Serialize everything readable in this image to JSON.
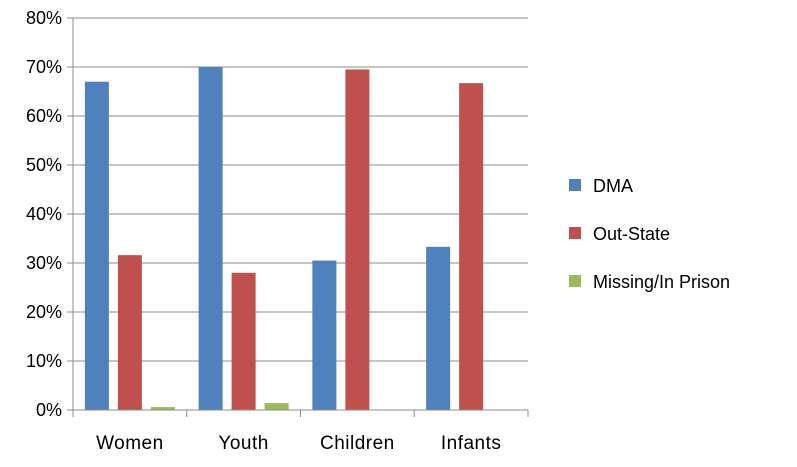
{
  "chart_data": {
    "type": "bar",
    "title": "",
    "xlabel": "",
    "ylabel": "",
    "categories": [
      "Women",
      "Youth",
      "Children",
      "Infants"
    ],
    "ylim": [
      0,
      80
    ],
    "yticks": [
      0,
      10,
      20,
      30,
      40,
      50,
      60,
      70,
      80
    ],
    "ytick_labels": [
      "0%",
      "10%",
      "20%",
      "30%",
      "40%",
      "50%",
      "60%",
      "70%",
      "80%"
    ],
    "grid": true,
    "legend_position": "right",
    "series": [
      {
        "name": "DMA",
        "color": "#4f81bd",
        "values": [
          67,
          70,
          30.5,
          33.3
        ]
      },
      {
        "name": "Out-State",
        "color": "#c0504d",
        "values": [
          31.6,
          28,
          69.5,
          66.7
        ]
      },
      {
        "name": "Missing/In Prison",
        "color": "#9bbb59",
        "values": [
          0.6,
          1.4,
          0,
          0
        ]
      }
    ]
  }
}
